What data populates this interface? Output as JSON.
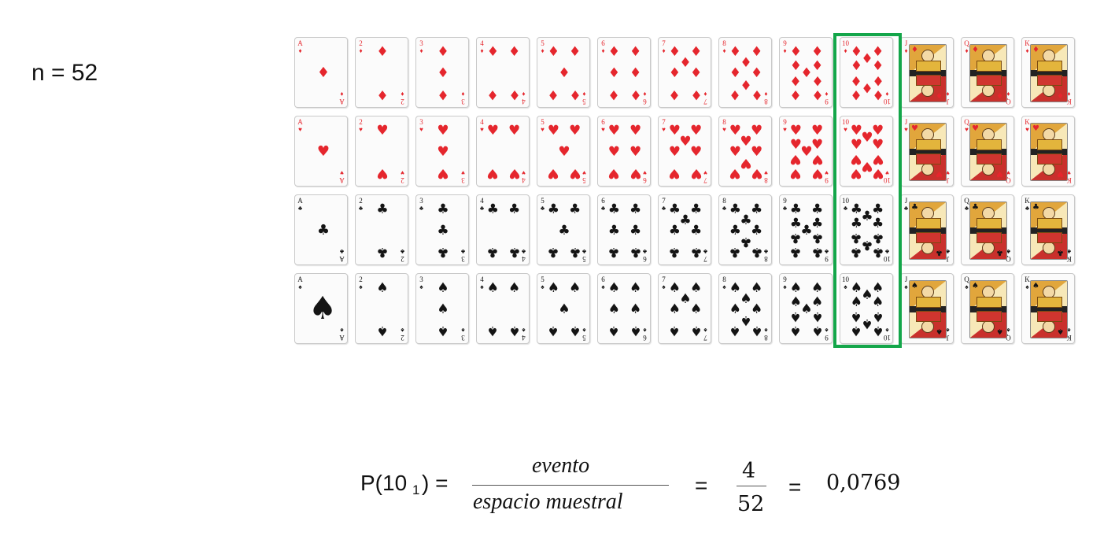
{
  "n_label": "n = 52",
  "formula": {
    "p_prefix": "P(10",
    "p_sub": "1",
    "p_suffix": ") =",
    "numerator": "evento",
    "denominator": "espacio muestral",
    "eq1": "=",
    "frac_num": "4",
    "frac_den": "52",
    "eq2": "=",
    "result": "0,0769"
  },
  "deck": {
    "ranks": [
      "A",
      "2",
      "3",
      "4",
      "5",
      "6",
      "7",
      "8",
      "9",
      "10",
      "J",
      "Q",
      "K"
    ],
    "suits": [
      {
        "name": "diamonds",
        "symbol": "♦",
        "color": "red"
      },
      {
        "name": "hearts",
        "symbol": "♥",
        "color": "red"
      },
      {
        "name": "clubs",
        "symbol": "♣",
        "color": "black"
      },
      {
        "name": "spades",
        "symbol": "♠",
        "color": "black"
      }
    ],
    "highlighted_rank": "10",
    "highlight_color": "#14a64a"
  }
}
